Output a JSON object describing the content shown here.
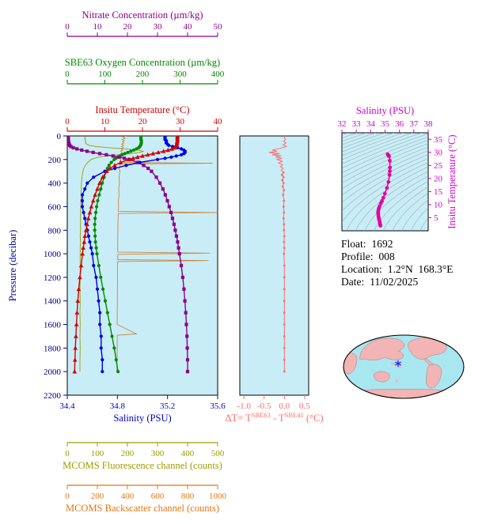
{
  "figure": {
    "bg": "#ffffff",
    "plot_bg": "#c9edf7",
    "contour_color": "#93a8aa",
    "box_color": "#000000"
  },
  "chart_data": [
    {
      "id": "profile",
      "type": "line",
      "pressure_axis": {
        "label": "Pressure (decibar)",
        "color": "#00008b",
        "range": [
          0,
          2200
        ],
        "ticks": [
          0,
          200,
          400,
          600,
          800,
          1000,
          1200,
          1400,
          1600,
          1800,
          2000,
          2200
        ],
        "tick_labels": [
          "0",
          "200",
          "400",
          "600",
          "800",
          "1000",
          "1200",
          "1400",
          "1600",
          "1800",
          "2000",
          "2200"
        ]
      },
      "top_axes": [
        {
          "id": "nitrate",
          "label": "Nitrate Concentration (µm/kg)",
          "color": "#8b008b",
          "range": [
            0,
            50
          ],
          "ticks": [
            0,
            10,
            20,
            30,
            40,
            50
          ],
          "tick_labels": [
            "0",
            "10",
            "20",
            "30",
            "40",
            "50"
          ]
        },
        {
          "id": "oxygen",
          "label": "SBE63 Oxygen Concentration (µm/kg)",
          "color": "#008a00",
          "range": [
            0,
            400
          ],
          "ticks": [
            0,
            100,
            200,
            300,
            400
          ],
          "tick_labels": [
            "0",
            "100",
            "200",
            "300",
            "400"
          ]
        },
        {
          "id": "temperature",
          "label": "Insitu Temperature (°C)",
          "color": "#d40000",
          "range": [
            0,
            40
          ],
          "ticks": [
            0,
            10,
            20,
            30,
            40
          ],
          "tick_labels": [
            "0",
            "10",
            "20",
            "30",
            "40"
          ]
        }
      ],
      "bottom_axes": [
        {
          "id": "salinity",
          "label": "Salinity (PSU)",
          "color": "#0000cd",
          "range": [
            34.4,
            35.6
          ],
          "ticks": [
            34.4,
            34.8,
            35.2,
            35.6
          ],
          "tick_labels": [
            "34.4",
            "34.8",
            "35.2",
            "35.6"
          ]
        },
        {
          "id": "fluorescence",
          "label": "MCOMS Fluorescence channel (counts)",
          "color": "#9c9c00",
          "range": [
            0,
            500
          ],
          "ticks": [
            0,
            100,
            200,
            300,
            400,
            500
          ],
          "tick_labels": [
            "0",
            "100",
            "200",
            "300",
            "400",
            "500"
          ]
        },
        {
          "id": "backscatter",
          "label": "MCOMS Backscatter channel (counts)",
          "color": "#e87511",
          "range": [
            0,
            1000
          ],
          "ticks": [
            0,
            200,
            400,
            600,
            800,
            1000
          ],
          "tick_labels": [
            "0",
            "200",
            "400",
            "600",
            "800",
            "1000"
          ]
        }
      ],
      "pressure_levels": [
        0,
        10,
        20,
        30,
        40,
        50,
        60,
        70,
        80,
        90,
        100,
        110,
        120,
        130,
        140,
        150,
        160,
        170,
        180,
        190,
        200,
        225,
        250,
        275,
        300,
        350,
        400,
        450,
        500,
        550,
        600,
        650,
        700,
        750,
        800,
        850,
        900,
        950,
        1000,
        1100,
        1200,
        1300,
        1400,
        1500,
        1600,
        1700,
        1800,
        1900,
        2000
      ],
      "series": [
        {
          "axis": "fluorescence",
          "name": "MCOMS Fluorescence",
          "color": "#9c9c00",
          "marker": "none",
          "values": [
            58,
            60,
            57,
            61,
            59,
            62,
            60,
            65,
            72,
            95,
            140,
            195,
            235,
            252,
            240,
            205,
            165,
            130,
            105,
            90,
            80,
            68,
            60,
            55,
            52,
            49,
            47,
            46,
            46,
            45,
            45,
            44,
            44,
            44,
            44,
            43,
            44,
            43,
            43,
            43,
            43,
            42,
            43,
            42,
            43,
            42,
            43,
            42,
            42
          ]
        },
        {
          "axis": "backscatter",
          "name": "MCOMS Backscatter",
          "color": "#cd8540",
          "marker": "none",
          "points": [
            [
              390,
              0
            ],
            [
              370,
              10
            ],
            [
              385,
              20
            ],
            [
              365,
              30
            ],
            [
              380,
              40
            ],
            [
              368,
              50
            ],
            [
              378,
              60
            ],
            [
              362,
              70
            ],
            [
              375,
              80
            ],
            [
              360,
              90
            ],
            [
              372,
              100
            ],
            [
              358,
              110
            ],
            [
              368,
              120
            ],
            [
              356,
              130
            ],
            [
              366,
              140
            ],
            [
              355,
              150
            ],
            [
              362,
              160
            ],
            [
              352,
              170
            ],
            [
              360,
              180
            ],
            [
              350,
              190
            ],
            [
              357,
              200
            ],
            [
              348,
              225
            ],
            [
              965,
              232
            ],
            [
              348,
              239
            ],
            [
              352,
              250
            ],
            [
              346,
              275
            ],
            [
              350,
              300
            ],
            [
              344,
              350
            ],
            [
              347,
              400
            ],
            [
              342,
              450
            ],
            [
              344,
              500
            ],
            [
              340,
              550
            ],
            [
              341,
              600
            ],
            [
              339,
              640
            ],
            [
              1000,
              650
            ],
            [
              339,
              658
            ],
            [
              338,
              700
            ],
            [
              337,
              750
            ],
            [
              337,
              800
            ],
            [
              336,
              850
            ],
            [
              336,
              900
            ],
            [
              335,
              950
            ],
            [
              336,
              985
            ],
            [
              950,
              995
            ],
            [
              336,
              1005
            ],
            [
              335,
              1050
            ],
            [
              940,
              1058
            ],
            [
              335,
              1066
            ],
            [
              334,
              1100
            ],
            [
              334,
              1200
            ],
            [
              333,
              1300
            ],
            [
              333,
              1400
            ],
            [
              332,
              1500
            ],
            [
              332,
              1600
            ],
            [
              460,
              1680
            ],
            [
              332,
              1690
            ],
            [
              332,
              1800
            ],
            [
              331,
              1900
            ],
            [
              330,
              2000
            ]
          ]
        },
        {
          "axis": "oxygen",
          "name": "SBE63 Oxygen Concentration",
          "color": "#008a00",
          "marker": "circle",
          "values": [
            196,
            196,
            196,
            196,
            197,
            197,
            197,
            196,
            195,
            193,
            190,
            184,
            177,
            169,
            161,
            153,
            146,
            140,
            134,
            129,
            125,
            117,
            111,
            107,
            104,
            98,
            93,
            89,
            85,
            81,
            78,
            76,
            74,
            73,
            73,
            74,
            75,
            77,
            79,
            84,
            89,
            95,
            101,
            107,
            113,
            119,
            125,
            130,
            135
          ]
        },
        {
          "axis": "nitrate",
          "name": "Nitrate Concentration",
          "color": "#8b008b",
          "marker": "square",
          "values": [
            0.3,
            0.3,
            0.3,
            0.3,
            0.4,
            0.4,
            0.5,
            0.6,
            0.8,
            1.2,
            2.0,
            3.2,
            4.8,
            6.6,
            8.6,
            10.8,
            13.0,
            15.2,
            17.2,
            19.0,
            20.6,
            23.4,
            25.4,
            26.9,
            28.0,
            29.6,
            30.8,
            31.8,
            32.6,
            33.3,
            33.9,
            34.5,
            35.0,
            35.5,
            35.9,
            36.3,
            36.7,
            37.0,
            37.3,
            37.9,
            38.4,
            38.8,
            39.1,
            39.4,
            39.6,
            39.8,
            39.9,
            40.0,
            40.0
          ]
        },
        {
          "axis": "salinity",
          "name": "Salinity",
          "color": "#0000e0",
          "marker": "circle",
          "values": [
            35.18,
            35.18,
            35.18,
            35.18,
            35.19,
            35.19,
            35.19,
            35.2,
            35.21,
            35.24,
            35.28,
            35.31,
            35.33,
            35.34,
            35.34,
            35.33,
            35.31,
            35.27,
            35.23,
            35.18,
            35.12,
            34.98,
            34.87,
            34.78,
            34.7,
            34.61,
            34.56,
            34.54,
            34.52,
            34.52,
            34.52,
            34.53,
            34.54,
            34.55,
            34.56,
            34.57,
            34.58,
            34.59,
            34.6,
            34.61,
            34.63,
            34.64,
            34.65,
            34.66,
            34.66,
            34.67,
            34.67,
            34.68,
            34.68
          ]
        },
        {
          "axis": "temperature",
          "name": "Insitu Temperature",
          "color": "#d40000",
          "marker": "triangle",
          "values": [
            29.3,
            29.3,
            29.3,
            29.3,
            29.3,
            29.2,
            29.2,
            29.1,
            29.0,
            28.8,
            28.5,
            27.8,
            26.8,
            25.6,
            24.2,
            22.8,
            21.4,
            20.0,
            18.7,
            17.5,
            16.4,
            14.2,
            12.6,
            11.4,
            10.5,
            9.4,
            8.6,
            8.0,
            7.4,
            6.9,
            6.4,
            6.0,
            5.6,
            5.3,
            5.0,
            4.7,
            4.5,
            4.25,
            4.05,
            3.7,
            3.35,
            3.05,
            2.8,
            2.6,
            2.45,
            2.3,
            2.15,
            2.05,
            1.95
          ]
        }
      ]
    },
    {
      "id": "delta",
      "type": "line",
      "xlabel_parts": {
        "prefix": "ΔT= T",
        "sup1": "SBE63",
        "mid": " - T",
        "sup2": "SBE41",
        "suffix": " (°C)"
      },
      "color": "#ff6a6a",
      "range": [
        -1.1,
        0.6
      ],
      "ticks": [
        -1.0,
        -0.5,
        0.0,
        0.5
      ],
      "tick_labels": [
        "-1.0",
        "-0.5",
        "0.0",
        "0.5"
      ],
      "points": [
        [
          0.02,
          0
        ],
        [
          0.0,
          15
        ],
        [
          0.03,
          30
        ],
        [
          -0.02,
          45
        ],
        [
          0.04,
          60
        ],
        [
          -0.03,
          75
        ],
        [
          0.05,
          90
        ],
        [
          -0.1,
          105
        ],
        [
          -0.3,
          120
        ],
        [
          -0.18,
          130
        ],
        [
          -0.38,
          140
        ],
        [
          -0.12,
          150
        ],
        [
          -0.3,
          160
        ],
        [
          -0.08,
          170
        ],
        [
          -0.22,
          180
        ],
        [
          -0.06,
          190
        ],
        [
          -0.18,
          200
        ],
        [
          -0.05,
          215
        ],
        [
          -0.14,
          230
        ],
        [
          -0.04,
          245
        ],
        [
          -0.1,
          260
        ],
        [
          -0.03,
          275
        ],
        [
          -0.08,
          290
        ],
        [
          -0.02,
          310
        ],
        [
          -0.06,
          330
        ],
        [
          -0.02,
          350
        ],
        [
          -0.05,
          375
        ],
        [
          -0.02,
          400
        ],
        [
          -0.04,
          430
        ],
        [
          -0.01,
          460
        ],
        [
          -0.03,
          500
        ],
        [
          -0.01,
          550
        ],
        [
          -0.02,
          600
        ],
        [
          -0.01,
          650
        ],
        [
          -0.02,
          700
        ],
        [
          -0.01,
          750
        ],
        [
          -0.01,
          800
        ],
        [
          0.0,
          850
        ],
        [
          -0.01,
          900
        ],
        [
          0.0,
          950
        ],
        [
          -0.01,
          1000
        ],
        [
          0.0,
          1100
        ],
        [
          0.0,
          1200
        ],
        [
          0.0,
          1300
        ],
        [
          0.0,
          1400
        ],
        [
          0.0,
          1500
        ],
        [
          0.0,
          1600
        ],
        [
          0.0,
          1700
        ],
        [
          0.0,
          1800
        ],
        [
          0.0,
          1900
        ],
        [
          0.0,
          2000
        ]
      ]
    },
    {
      "id": "ts",
      "type": "scatter",
      "x_axis": {
        "label": "Salinity (PSU)",
        "color": "#cc00cc",
        "range": [
          32,
          38
        ],
        "ticks": [
          32,
          33,
          34,
          35,
          36,
          37,
          38
        ],
        "tick_labels": [
          "32",
          "33",
          "34",
          "35",
          "36",
          "37",
          "38"
        ]
      },
      "y_axis": {
        "label": "Insitu Temperature (°C)",
        "color": "#cc00cc",
        "range": [
          0,
          37.5
        ],
        "ticks": [
          5,
          10,
          15,
          20,
          25,
          30,
          35
        ],
        "tick_labels": [
          "5",
          "10",
          "15",
          "20",
          "25",
          "30",
          "35"
        ]
      },
      "marker_color": "#e600a0",
      "points": [
        [
          35.18,
          29.3
        ],
        [
          35.19,
          29.2
        ],
        [
          35.2,
          29.1
        ],
        [
          35.24,
          28.8
        ],
        [
          35.28,
          28.5
        ],
        [
          35.33,
          26.8
        ],
        [
          35.34,
          24.2
        ],
        [
          35.33,
          22.8
        ],
        [
          35.31,
          21.4
        ],
        [
          35.24,
          18.7
        ],
        [
          35.13,
          16.4
        ],
        [
          34.99,
          14.2
        ],
        [
          34.88,
          12.6
        ],
        [
          34.79,
          11.4
        ],
        [
          34.71,
          10.5
        ],
        [
          34.62,
          9.4
        ],
        [
          34.57,
          8.6
        ],
        [
          34.54,
          8.0
        ],
        [
          34.52,
          7.4
        ],
        [
          34.52,
          6.9
        ],
        [
          34.53,
          6.4
        ],
        [
          34.54,
          5.6
        ],
        [
          34.56,
          5.0
        ],
        [
          34.58,
          4.4
        ],
        [
          34.6,
          4.0
        ],
        [
          34.63,
          3.3
        ],
        [
          34.65,
          2.8
        ],
        [
          34.66,
          2.4
        ],
        [
          34.67,
          2.15
        ],
        [
          34.68,
          1.95
        ]
      ]
    }
  ],
  "float_info": {
    "lines": [
      {
        "label": "Float:",
        "value": "1692"
      },
      {
        "label": "Profile:",
        "value": "008"
      },
      {
        "label": "Location:",
        "value": "1.2°N  168.3°E"
      },
      {
        "label": "Date:",
        "value": "11/02/2025"
      }
    ]
  },
  "map": {
    "ocean_color": "#a9e7f0",
    "land_color": "#f2b4b4",
    "outline_color": "#000000",
    "marker_shape": "asterisk-icon",
    "marker_color": "#2424ff"
  }
}
